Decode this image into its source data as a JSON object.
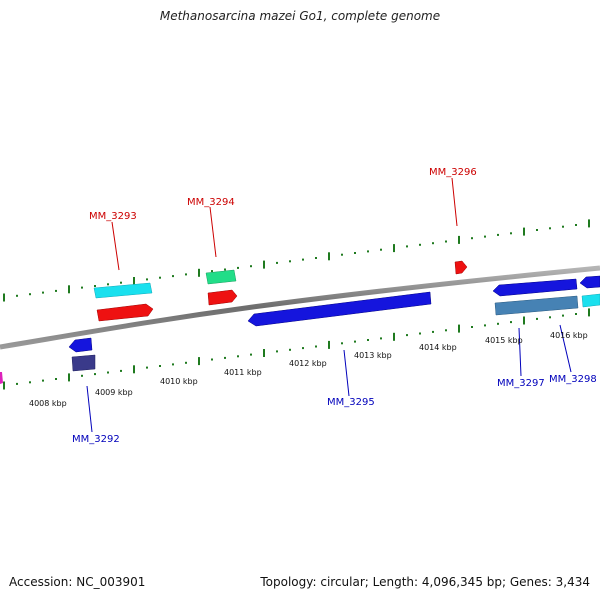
{
  "title": "Methanosarcina mazei Go1, complete genome",
  "footer": {
    "accession": "Accession: NC_003901",
    "stats": "Topology: circular; Length: 4,096,345 bp; Genes: 3,434"
  },
  "ruler": {
    "labels": [
      "4008 kbp",
      "4009 kbp",
      "4010 kbp",
      "4011 kbp",
      "4012 kbp",
      "4013 kbp",
      "4014 kbp",
      "4015 kbp",
      "4016 kbp"
    ]
  },
  "gene_labels": {
    "forward": [
      "MM_3293",
      "MM_3294",
      "MM_3296"
    ],
    "reverse": [
      "MM_3292",
      "MM_3295",
      "MM_3297",
      "MM_3298"
    ]
  },
  "colors": {
    "forward_label": "#cc0000",
    "reverse_label": "#0000bb",
    "backbone": "#8a8a8a",
    "tick": "#1f7a1f",
    "cds_forward": "#ee1111",
    "cds_reverse": "#1515dd",
    "trna": "#00e5ee",
    "rrna": "#22dd88",
    "other": "#3a3a8a",
    "gray_blue": "#4682b4"
  }
}
